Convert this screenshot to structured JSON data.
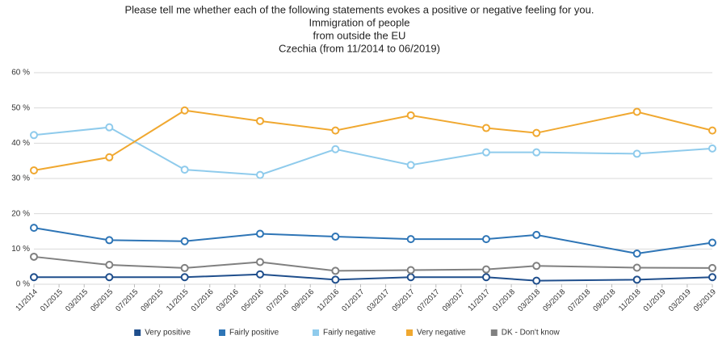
{
  "chart_data": {
    "type": "line",
    "title": [
      "Please tell me whether each of the following statements evokes a positive or negative feeling for you.",
      "Immigration of people",
      "from outside the EU",
      "Czechia (from 11/2014 to 06/2019)"
    ],
    "x": [
      "11/2014",
      "05/2015",
      "11/2015",
      "05/2016",
      "11/2016",
      "05/2017",
      "11/2017",
      "03/2018",
      "11/2018",
      "05/2019"
    ],
    "xticks": [
      "11/2014",
      "01/2015",
      "03/2015",
      "05/2015",
      "07/2015",
      "09/2015",
      "11/2015",
      "01/2016",
      "03/2016",
      "05/2016",
      "07/2016",
      "09/2016",
      "11/2016",
      "01/2017",
      "03/2017",
      "05/2017",
      "07/2017",
      "09/2017",
      "11/2017",
      "01/2018",
      "03/2018",
      "05/2018",
      "07/2018",
      "09/2018",
      "11/2018",
      "01/2019",
      "03/2019",
      "05/2019"
    ],
    "series": [
      {
        "name": "Very positive",
        "color": "#1f4e8c",
        "values": [
          2,
          2,
          2,
          2.8,
          1.3,
          2,
          2,
          1,
          1.3,
          2
        ]
      },
      {
        "name": "Fairly positive",
        "color": "#2e75b6",
        "values": [
          16,
          12.5,
          12.2,
          14.3,
          13.5,
          12.8,
          12.8,
          14,
          8.7,
          11.8
        ]
      },
      {
        "name": "Fairly negative",
        "color": "#8fcbec",
        "values": [
          42.3,
          44.5,
          32.5,
          31,
          38.3,
          33.8,
          37.4,
          37.4,
          37,
          38.5
        ]
      },
      {
        "name": "Very negative",
        "color": "#f0a830",
        "values": [
          32.3,
          36,
          49.3,
          46.3,
          43.6,
          47.9,
          44.3,
          42.9,
          48.9,
          43.6
        ]
      },
      {
        "name": "DK - Don't know",
        "color": "#808080",
        "values": [
          7.8,
          5.5,
          4.6,
          6.3,
          3.8,
          4,
          4.2,
          5.2,
          4.7,
          4.6
        ]
      }
    ],
    "ylim": [
      0,
      60
    ],
    "yticks": [
      {
        "value": 0,
        "label": "0 %"
      },
      {
        "value": 10,
        "label": "10 %"
      },
      {
        "value": 20,
        "label": "20 %"
      },
      {
        "value": 30,
        "label": "30 %"
      },
      {
        "value": 40,
        "label": "40 %"
      },
      {
        "value": 50,
        "label": "50 %"
      },
      {
        "value": 60,
        "label": "60 %"
      }
    ],
    "grid": true,
    "legend": "bottom"
  }
}
